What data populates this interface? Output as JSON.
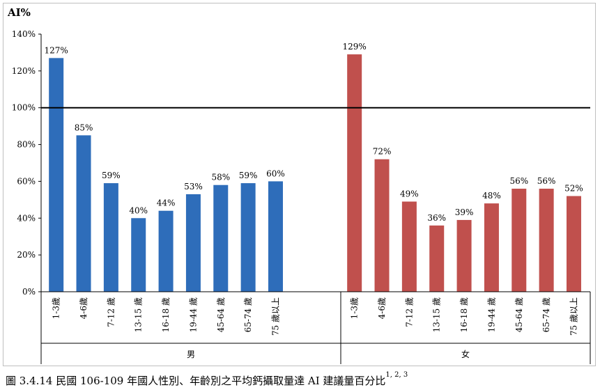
{
  "chart_data": {
    "type": "bar",
    "ylabel": "AI%",
    "ylim": [
      0,
      140
    ],
    "yticks": [
      0,
      20,
      40,
      60,
      80,
      100,
      120,
      140
    ],
    "ytick_labels": [
      "0%",
      "20%",
      "40%",
      "60%",
      "80%",
      "100%",
      "120%",
      "140%"
    ],
    "reference_line": 100,
    "grid": false,
    "groups": [
      {
        "name": "男",
        "color": "#2e6dba",
        "categories": [
          "1-3歲",
          "4-6歲",
          "7-12 歲",
          "13-15 歲",
          "16-18 歲",
          "19-44 歲",
          "45-64 歲",
          "65-74 歲",
          "75 歲以上"
        ],
        "values": [
          127,
          85,
          59,
          40,
          44,
          53,
          58,
          59,
          60
        ],
        "labels": [
          "127%",
          "85%",
          "59%",
          "40%",
          "44%",
          "53%",
          "58%",
          "59%",
          "60%"
        ]
      },
      {
        "name": "女",
        "color": "#c0504d",
        "categories": [
          "1-3歲",
          "4-6歲",
          "7-12 歲",
          "13-15 歲",
          "16-18 歲",
          "19-44 歲",
          "45-64 歲",
          "65-74 歲",
          "75 歲以上"
        ],
        "values": [
          129,
          72,
          49,
          36,
          39,
          48,
          56,
          56,
          52
        ],
        "labels": [
          "129%",
          "72%",
          "49%",
          "36%",
          "39%",
          "48%",
          "56%",
          "56%",
          "52%"
        ]
      }
    ]
  },
  "caption": {
    "text": "圖 3.4.14 民國 106-109 年國人性別、年齡別之平均鈣攝取量達 AI 建議量百分比",
    "superscript": "1, 2, 3"
  }
}
